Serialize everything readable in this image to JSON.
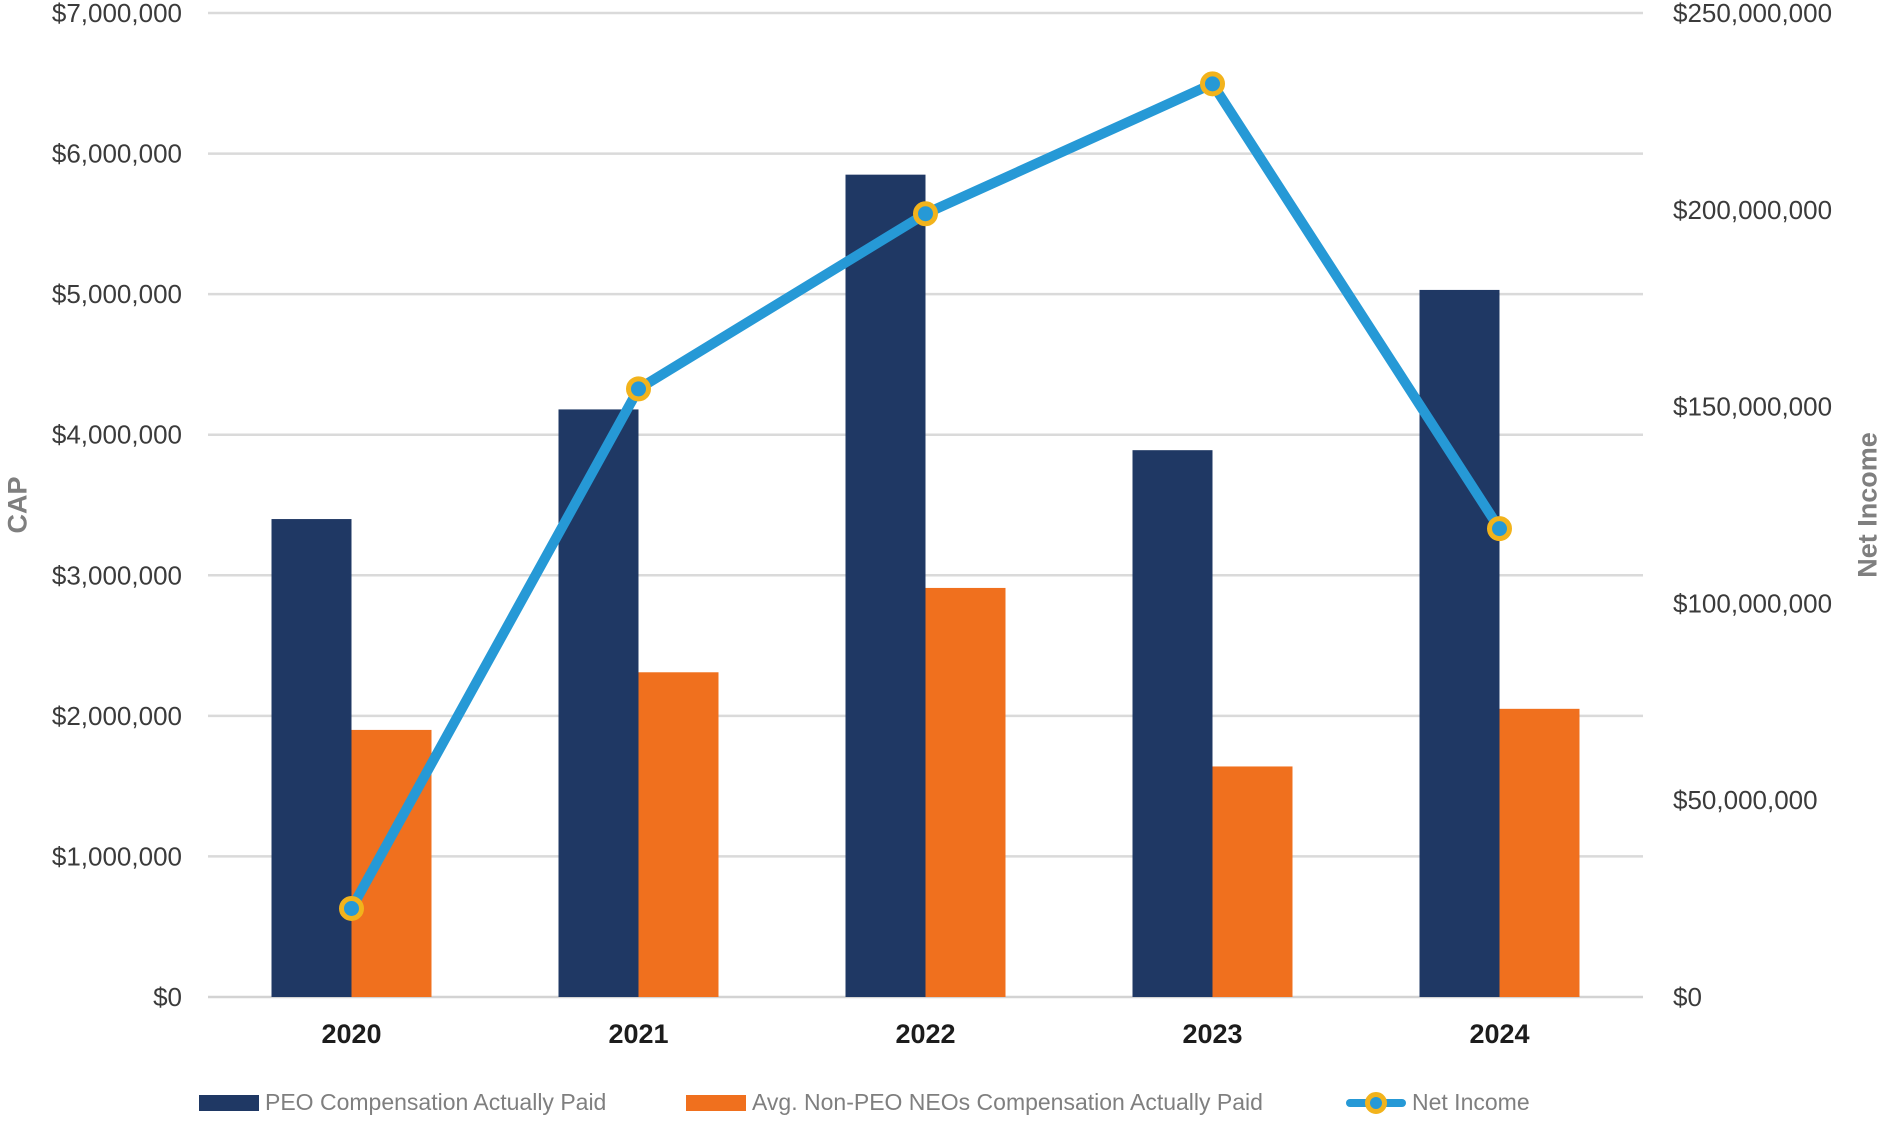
{
  "chart_data": {
    "type": "combo-bar-line",
    "categories": [
      "2020",
      "2021",
      "2022",
      "2023",
      "2024"
    ],
    "series": [
      {
        "name": "PEO Compensation Actually Paid",
        "type": "bar",
        "axis": "left",
        "color": "#1F3864",
        "values": [
          3400000,
          4180000,
          5850000,
          3890000,
          5030000
        ]
      },
      {
        "name": "Avg. Non-PEO NEOs Compensation Actually Paid",
        "type": "bar",
        "axis": "left",
        "color": "#F0701E",
        "values": [
          1900000,
          2310000,
          2910000,
          1640000,
          2050000
        ]
      },
      {
        "name": "Net Income",
        "type": "line",
        "axis": "right",
        "color": "#2699D6",
        "marker_ring_color": "#F2B31C",
        "values": [
          22500000,
          154500000,
          199000000,
          232000000,
          119000000
        ]
      }
    ],
    "left_axis": {
      "title": "CAP",
      "min": 0,
      "max": 7000000,
      "tick_step": 1000000,
      "tick_labels": [
        "$0",
        "$1,000,000",
        "$2,000,000",
        "$3,000,000",
        "$4,000,000",
        "$5,000,000",
        "$6,000,000",
        "$7,000,000"
      ]
    },
    "right_axis": {
      "title": "Net Income",
      "min": 0,
      "max": 250000000,
      "tick_step": 50000000,
      "tick_labels": [
        "$0",
        "$50,000,000",
        "$100,000,000",
        "$150,000,000",
        "$200,000,000",
        "$250,000,000"
      ]
    },
    "gridlines": true,
    "legend_position": "bottom"
  },
  "styles": {
    "background": "#FFFFFF",
    "grid_color": "#DADADA",
    "axis_line_color": "#D3D3D3",
    "tick_label_color": "#3B3B3B",
    "category_label_color": "#1C1C1C",
    "axis_title_color": "#7F7F7F",
    "legend_text_color": "#7F7F7F"
  }
}
